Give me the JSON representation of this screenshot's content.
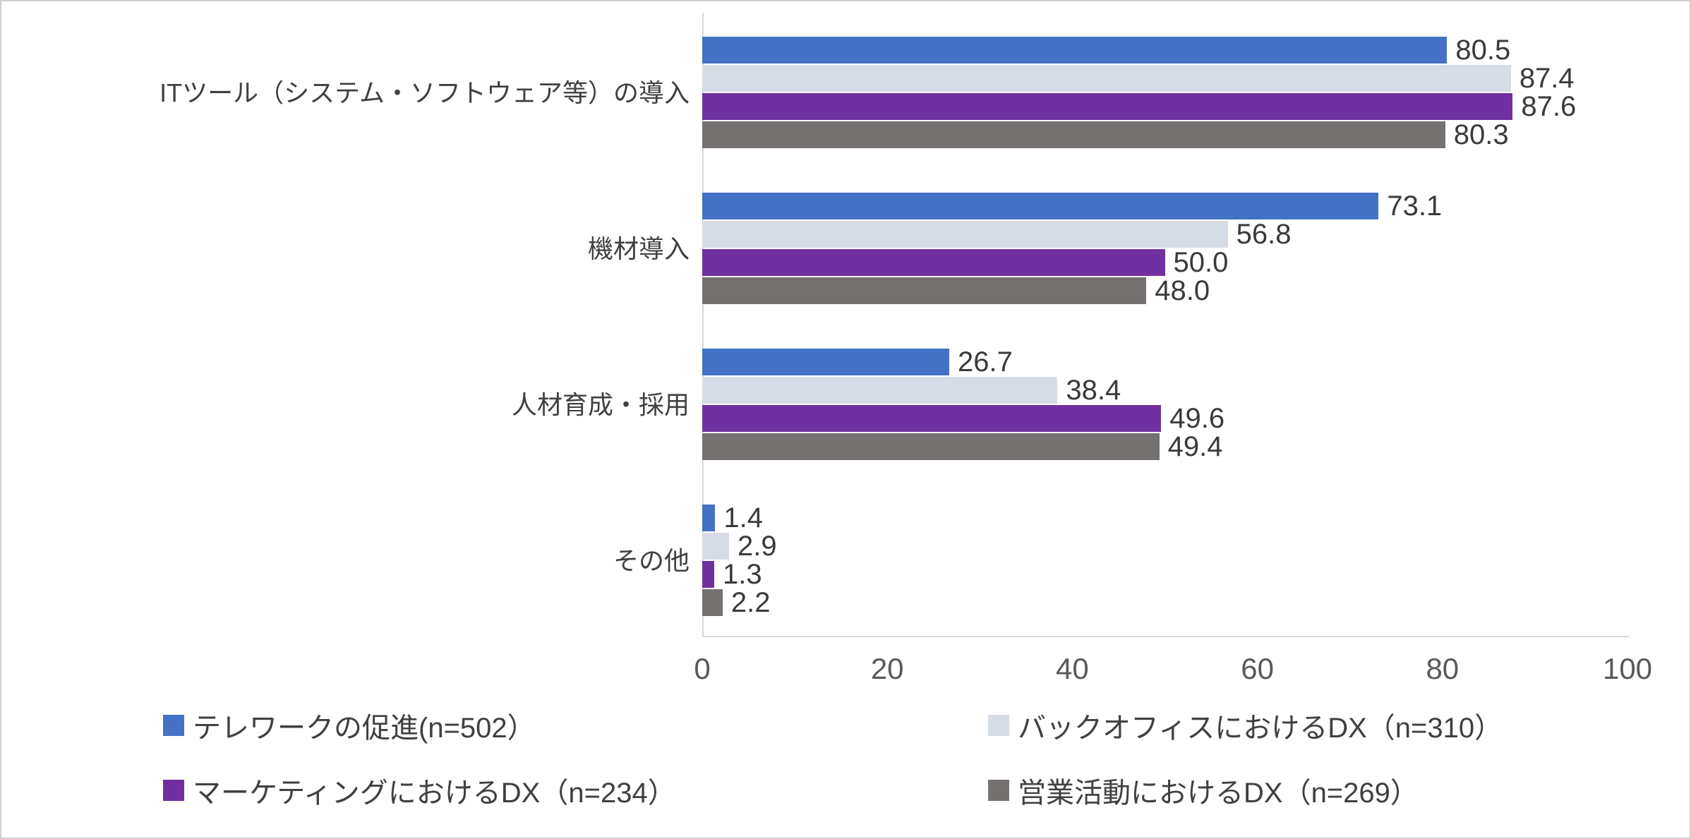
{
  "chart_data": {
    "type": "bar",
    "orientation": "horizontal",
    "title": "",
    "xlabel": "",
    "ylabel": "",
    "xlim": [
      0,
      100
    ],
    "x_ticks": [
      0,
      20,
      40,
      60,
      80,
      100
    ],
    "grid": false,
    "legend_position": "bottom",
    "axis_line_color": "#d9d9d9",
    "tick_label_color": "#595959",
    "value_label_color": "#3a3a3a",
    "categories": [
      "ITツール（システム・ソフトウェア等）の導入",
      "機材導入",
      "人材育成・採用",
      "その他"
    ],
    "series": [
      {
        "key": "telework",
        "name": "テレワークの促進(n=502）",
        "color": "#4472C4",
        "values": [
          80.5,
          73.1,
          26.7,
          1.4
        ],
        "labels": [
          "80.5",
          "73.1",
          "26.7",
          "1.4"
        ]
      },
      {
        "key": "backoffice",
        "name": "バックオフィスにおけるDX（n=310）",
        "color": "#D6DCE5",
        "values": [
          87.4,
          56.8,
          38.4,
          2.9
        ],
        "labels": [
          "87.4",
          "56.8",
          "38.4",
          "2.9"
        ]
      },
      {
        "key": "marketing",
        "name": "マーケティングにおけるDX（n=234）",
        "color": "#7030A0",
        "values": [
          87.6,
          50.0,
          49.6,
          1.3
        ],
        "labels": [
          "87.6",
          "50.0",
          "49.6",
          "1.3"
        ]
      },
      {
        "key": "sales",
        "name": "営業活動におけるDX（n=269）",
        "color": "#767171",
        "values": [
          80.3,
          48.0,
          49.4,
          2.2
        ],
        "labels": [
          "80.3",
          "48.0",
          "49.4",
          "2.2"
        ]
      }
    ]
  }
}
